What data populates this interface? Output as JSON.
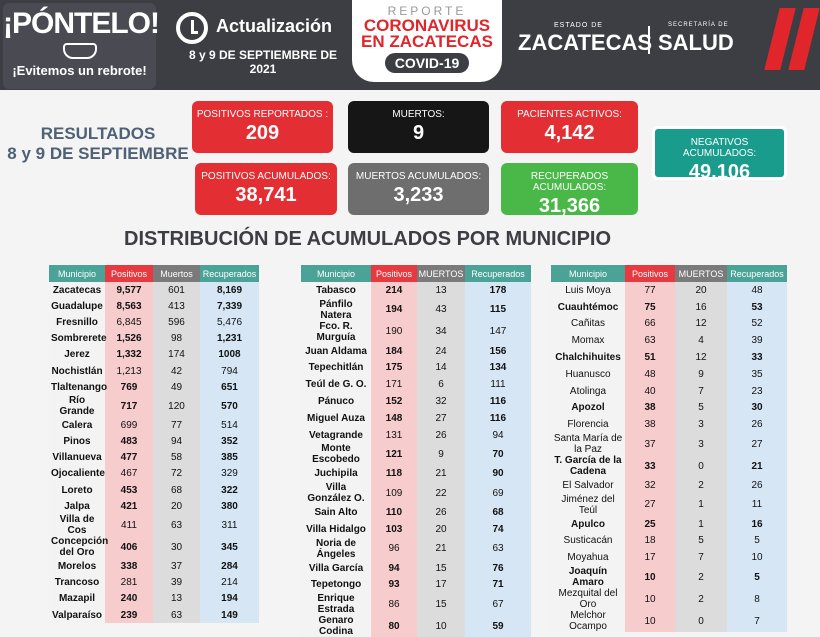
{
  "header": {
    "ponte_title": "¡PÓNTELO!",
    "ponte_sub": "¡Evitemos un rebrote!",
    "update_label": "Actualización",
    "update_date": "8 y 9 DE SEPTIEMBRE DE 2021",
    "logo_reporte": "REPORTE",
    "logo_coronavirus": "CORONAVIRUS",
    "logo_en": "EN ZACATECAS",
    "logo_covid": "COVID-19",
    "estado_label": "ESTADO DE",
    "estado_name": "ZACATECAS",
    "secretaria_label": "SECRETARÍA DE",
    "secretaria_name": "SALUD"
  },
  "results": {
    "title_line1": "RESULTADOS",
    "title_line2": "8 y 9 DE SEPTIEMBRE",
    "positivos_reportados_label": "POSITIVOS REPORTADOS :",
    "positivos_reportados": "209",
    "muertos_label": "MUERTOS:",
    "muertos": "9",
    "pacientes_activos_label": "PACIENTES ACTIVOS:",
    "pacientes_activos": "4,142",
    "negativos_label": "NEGATIVOS ACUMULADOS:",
    "negativos": "49,106",
    "positivos_acumulados_label": "POSITIVOS ACUMULADOS:",
    "positivos_acumulados": "38,741",
    "muertos_acumulados_label": "MUERTOS ACUMULADOS:",
    "muertos_acumulados": "3,233",
    "recuperados_label": "RECUPERADOS ACUMULADOS:",
    "recuperados": "31,366"
  },
  "distribution_title": "DISTRIBUCIÓN DE ACUMULADOS POR MUNICIPIO",
  "tables": [
    {
      "headers": [
        "Municipio",
        "Positivos",
        "Muertos",
        "Recuperados"
      ],
      "rows": [
        [
          "Zacatecas",
          "9,577",
          "601",
          "8,169"
        ],
        [
          "Guadalupe",
          "8,563",
          "413",
          "7,339"
        ],
        [
          "Fresnillo",
          "6,845",
          "596",
          "5,476"
        ],
        [
          "Sombrerete",
          "1,526",
          "98",
          "1,231"
        ],
        [
          "Jerez",
          "1,332",
          "174",
          "1008"
        ],
        [
          "Nochistlán",
          "1,213",
          "42",
          "794"
        ],
        [
          "Tlaltenango",
          "769",
          "49",
          "651"
        ],
        [
          "Río Grande",
          "717",
          "120",
          "570"
        ],
        [
          "Calera",
          "699",
          "77",
          "514"
        ],
        [
          "Pinos",
          "483",
          "94",
          "352"
        ],
        [
          "Villanueva",
          "477",
          "58",
          "385"
        ],
        [
          "Ojocaliente",
          "467",
          "72",
          "329"
        ],
        [
          "Loreto",
          "453",
          "68",
          "322"
        ],
        [
          "Jalpa",
          "421",
          "20",
          "380"
        ],
        [
          "Villa de Cos",
          "411",
          "63",
          "311"
        ],
        [
          "Concepción del Oro",
          "406",
          "30",
          "345"
        ],
        [
          "Morelos",
          "338",
          "37",
          "284"
        ],
        [
          "Trancoso",
          "281",
          "39",
          "214"
        ],
        [
          "Mazapil",
          "240",
          "13",
          "194"
        ],
        [
          "Valparaíso",
          "239",
          "63",
          "149"
        ]
      ]
    },
    {
      "headers": [
        "Municipio",
        "Positivos",
        "MUERTOS",
        "Recuperados"
      ],
      "rows": [
        [
          "Tabasco",
          "214",
          "13",
          "178"
        ],
        [
          "Pánfilo Natera",
          "194",
          "43",
          "115"
        ],
        [
          "Fco. R. Murguía",
          "190",
          "34",
          "147"
        ],
        [
          "Juan Aldama",
          "184",
          "24",
          "156"
        ],
        [
          "Tepechitlán",
          "175",
          "14",
          "134"
        ],
        [
          "Teúl de G. O.",
          "171",
          "6",
          "111"
        ],
        [
          "Pánuco",
          "152",
          "32",
          "116"
        ],
        [
          "Miguel Auza",
          "148",
          "27",
          "116"
        ],
        [
          "Vetagrande",
          "131",
          "26",
          "94"
        ],
        [
          "Monte Escobedo",
          "121",
          "9",
          "70"
        ],
        [
          "Juchipila",
          "118",
          "21",
          "90"
        ],
        [
          "Villa González O.",
          "109",
          "22",
          "69"
        ],
        [
          "Sain Alto",
          "110",
          "26",
          "68"
        ],
        [
          "Villa Hidalgo",
          "103",
          "20",
          "74"
        ],
        [
          "Noria de Ángeles",
          "96",
          "21",
          "63"
        ],
        [
          "Villa García",
          "94",
          "15",
          "76"
        ],
        [
          "Tepetongo",
          "93",
          "17",
          "71"
        ],
        [
          "Enrique Estrada",
          "86",
          "15",
          "67"
        ],
        [
          "Genaro Codina",
          "80",
          "10",
          "59"
        ]
      ]
    },
    {
      "headers": [
        "Municipio",
        "Positivos",
        "MUERTOS",
        "Recuperados"
      ],
      "rows": [
        [
          "Luis Moya",
          "77",
          "20",
          "48"
        ],
        [
          "Cuauhtémoc",
          "75",
          "16",
          "53"
        ],
        [
          "Cañitas",
          "66",
          "12",
          "52"
        ],
        [
          "Momax",
          "63",
          "4",
          "39"
        ],
        [
          "Chalchihuites",
          "51",
          "12",
          "33"
        ],
        [
          "Huanusco",
          "48",
          "9",
          "35"
        ],
        [
          "Atolinga",
          "40",
          "7",
          "23"
        ],
        [
          "Apozol",
          "38",
          "5",
          "30"
        ],
        [
          "Florencia",
          "38",
          "3",
          "26"
        ],
        [
          "Santa María de la Paz",
          "37",
          "3",
          "27"
        ],
        [
          "T. García de la Cadena",
          "33",
          "0",
          "21"
        ],
        [
          "El Salvador",
          "32",
          "2",
          "26"
        ],
        [
          "Jiménez del Teúl",
          "27",
          "1",
          "11"
        ],
        [
          "Apulco",
          "25",
          "1",
          "16"
        ],
        [
          "Susticacán",
          "18",
          "5",
          "5"
        ],
        [
          "Moyahua",
          "17",
          "7",
          "10"
        ],
        [
          "Joaquín Amaro",
          "10",
          "2",
          "5"
        ],
        [
          "Mezquital del Oro",
          "10",
          "2",
          "8"
        ],
        [
          "Melchor Ocampo",
          "10",
          "0",
          "7"
        ]
      ]
    }
  ]
}
